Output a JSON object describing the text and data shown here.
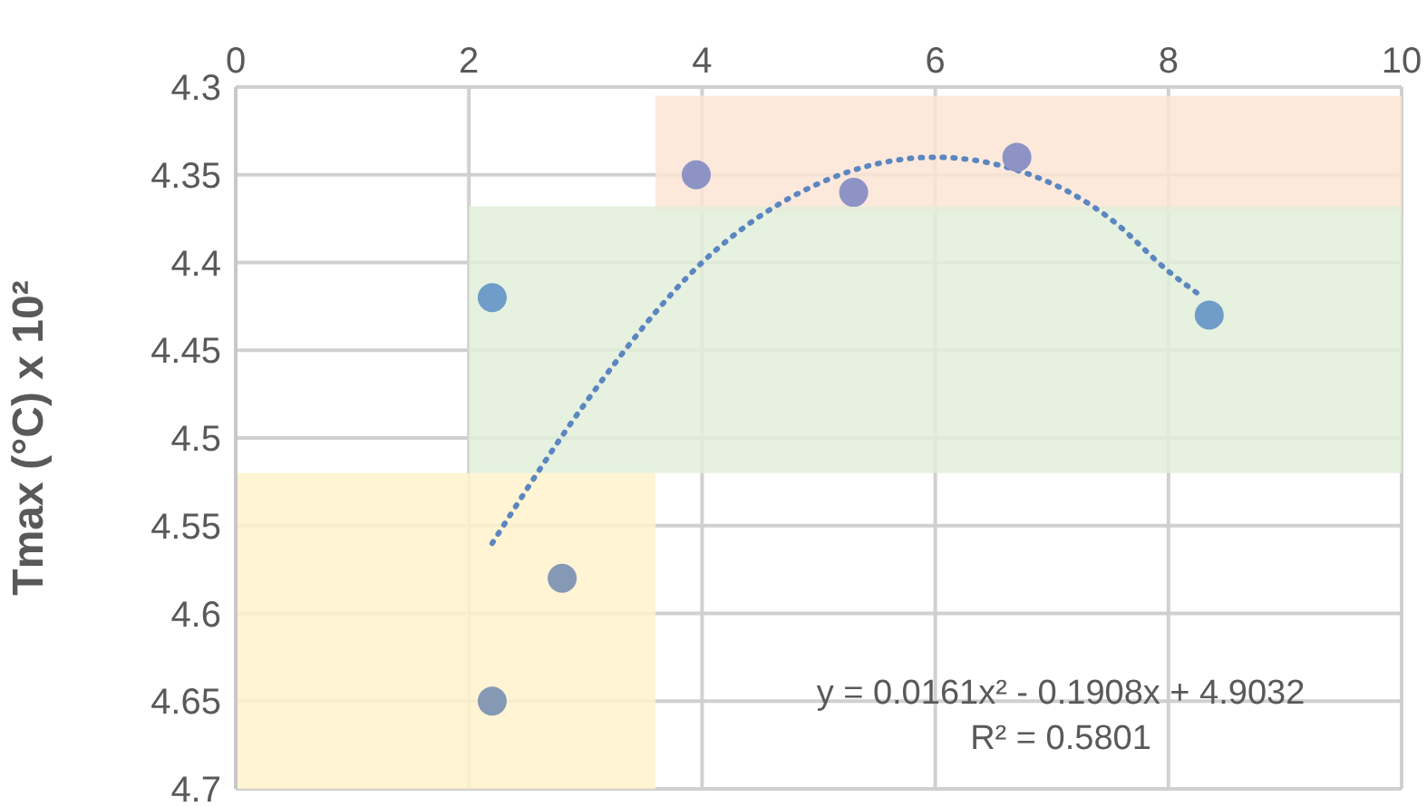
{
  "chart_data": {
    "type": "scatter",
    "ylabel": "Tmax (°C) x 10²",
    "xlim": [
      0,
      10
    ],
    "xticks": [
      0,
      2,
      4,
      6,
      8,
      10
    ],
    "ylim": [
      4.7,
      4.3
    ],
    "yticks": [
      4.3,
      4.35,
      4.4,
      4.45,
      4.5,
      4.55,
      4.6,
      4.65,
      4.7
    ],
    "grid": true,
    "series": [
      {
        "marker": "circle",
        "x": [
          2.2,
          3.95,
          5.3,
          6.7,
          8.35,
          2.8,
          2.2
        ],
        "values": [
          4.42,
          4.35,
          4.36,
          4.34,
          4.43,
          4.58,
          4.65
        ],
        "colors": [
          "#6f9cc8",
          "#8d93c4",
          "#8d93c4",
          "#8d93c4",
          "#6f9cc8",
          "#8599b5",
          "#8599b5"
        ]
      },
      {
        "type": "line",
        "marker": "none",
        "line_style": "dotted",
        "color": "#5b86c0",
        "x": [
          2.2,
          3,
          4,
          5,
          6,
          7,
          7.5,
          8,
          8.3
        ],
        "values": [
          4.56,
          4.48,
          4.4,
          4.355,
          4.34,
          4.355,
          4.375,
          4.405,
          4.42
        ]
      }
    ],
    "bands": [
      {
        "axis": "y",
        "from": 4.305,
        "to": 4.372,
        "color": "#fbe5d6"
      },
      {
        "axis": "y",
        "from": 4.368,
        "to": 4.52,
        "color": "#e2efda"
      },
      {
        "axis": "y",
        "from": 4.52,
        "to": 4.7,
        "color": "#fff2cc"
      }
    ],
    "annotations": [
      "y = 0.0161x² - 0.1908x + 4.9032",
      "R² = 0.5801"
    ]
  }
}
